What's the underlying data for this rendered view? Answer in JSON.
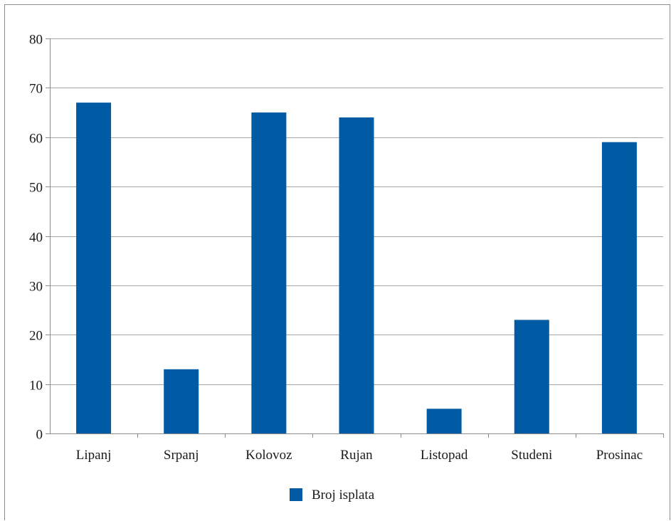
{
  "chart_data": {
    "type": "bar",
    "categories": [
      "Lipanj",
      "Srpanj",
      "Kolovoz",
      "Rujan",
      "Listopad",
      "Studeni",
      "Prosinac"
    ],
    "series": [
      {
        "name": "Broj isplata",
        "values": [
          67,
          13,
          65,
          64,
          5,
          23,
          59
        ]
      }
    ],
    "ylim": [
      0,
      80
    ],
    "yticks": [
      0,
      10,
      20,
      30,
      40,
      50,
      60,
      70,
      80
    ],
    "grid": true,
    "legend": "bottom",
    "colors": {
      "bar": "#005aa4",
      "grid": "#a6a6a6",
      "axis": "#8c8c8c"
    }
  }
}
